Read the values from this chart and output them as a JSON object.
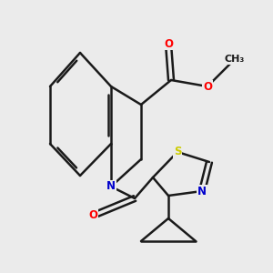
{
  "bg_color": "#ebebeb",
  "bond_color": "#1a1a1a",
  "bond_lw": 1.8,
  "atom_colors": {
    "O": "#ff0000",
    "N": "#0000cc",
    "S": "#cccc00",
    "C": "#1a1a1a"
  },
  "font_size": 8.5,
  "figsize": [
    3.0,
    3.0
  ],
  "dpi": 100,
  "xlim": [
    -2.8,
    3.2
  ],
  "ylim": [
    -3.2,
    2.8
  ]
}
